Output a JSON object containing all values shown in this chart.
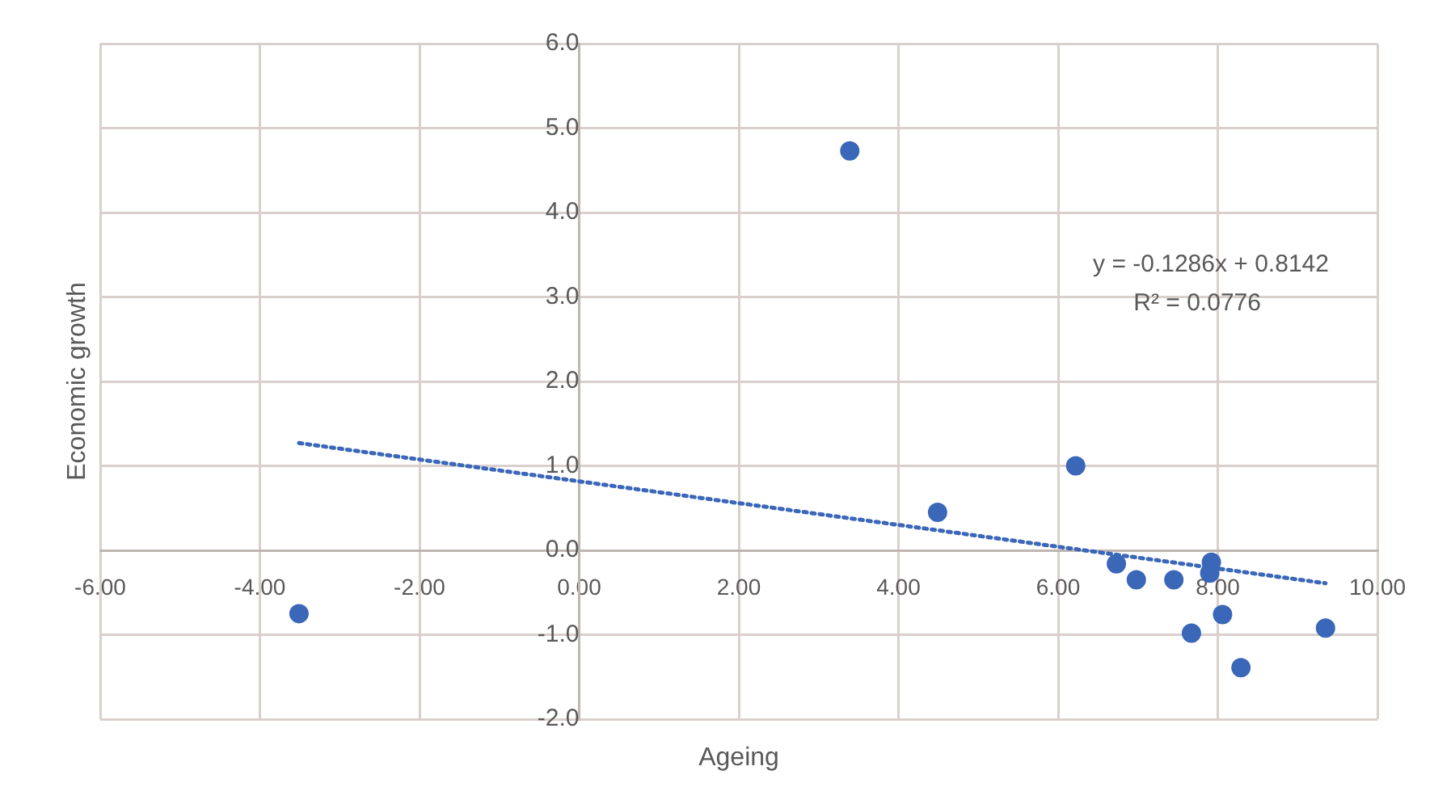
{
  "chart_data": {
    "type": "scatter",
    "xlabel": "Ageing",
    "ylabel": "Economic growth",
    "xlim": [
      -6,
      10
    ],
    "xticks": [
      {
        "value": -6,
        "label": "-6.00"
      },
      {
        "value": -4,
        "label": "-4.00"
      },
      {
        "value": -2,
        "label": "-2.00"
      },
      {
        "value": 0,
        "label": "0.00"
      },
      {
        "value": 2,
        "label": "2.00"
      },
      {
        "value": 4,
        "label": "4.00"
      },
      {
        "value": 6,
        "label": "6.00"
      },
      {
        "value": 8,
        "label": "8.00"
      },
      {
        "value": 10,
        "label": "10.00"
      }
    ],
    "ylim": [
      -2,
      6
    ],
    "yticks": [
      {
        "value": -2,
        "label": "-2.0"
      },
      {
        "value": -1,
        "label": "-1.0"
      },
      {
        "value": 0,
        "label": "0.0"
      },
      {
        "value": 1,
        "label": "1.0"
      },
      {
        "value": 2,
        "label": "2.0"
      },
      {
        "value": 3,
        "label": "3.0"
      },
      {
        "value": 4,
        "label": "4.0"
      },
      {
        "value": 5,
        "label": "5.0"
      },
      {
        "value": 6,
        "label": "6.0"
      }
    ],
    "grid": true,
    "legend": false,
    "marker": "circle",
    "series": [
      {
        "color": "#3b67b9",
        "x": [
          -3.51,
          3.39,
          4.49,
          6.22,
          6.73,
          6.98,
          7.45,
          7.67,
          7.92,
          7.9,
          8.06,
          8.29,
          9.35
        ],
        "values": [
          -0.75,
          4.73,
          0.45,
          1.0,
          -0.16,
          -0.35,
          -0.35,
          -0.98,
          -0.14,
          -0.27,
          -0.76,
          -1.39,
          -0.92
        ]
      },
      {
        "type": "line",
        "color": "#3b67b9",
        "line_style": "dotted",
        "marker": "none",
        "x": [
          -3.51,
          9.35
        ],
        "values": [
          1.27,
          -0.39
        ]
      }
    ],
    "annotations": [
      "y = -0.1286x + 0.8142",
      "R² = 0.0776"
    ]
  }
}
